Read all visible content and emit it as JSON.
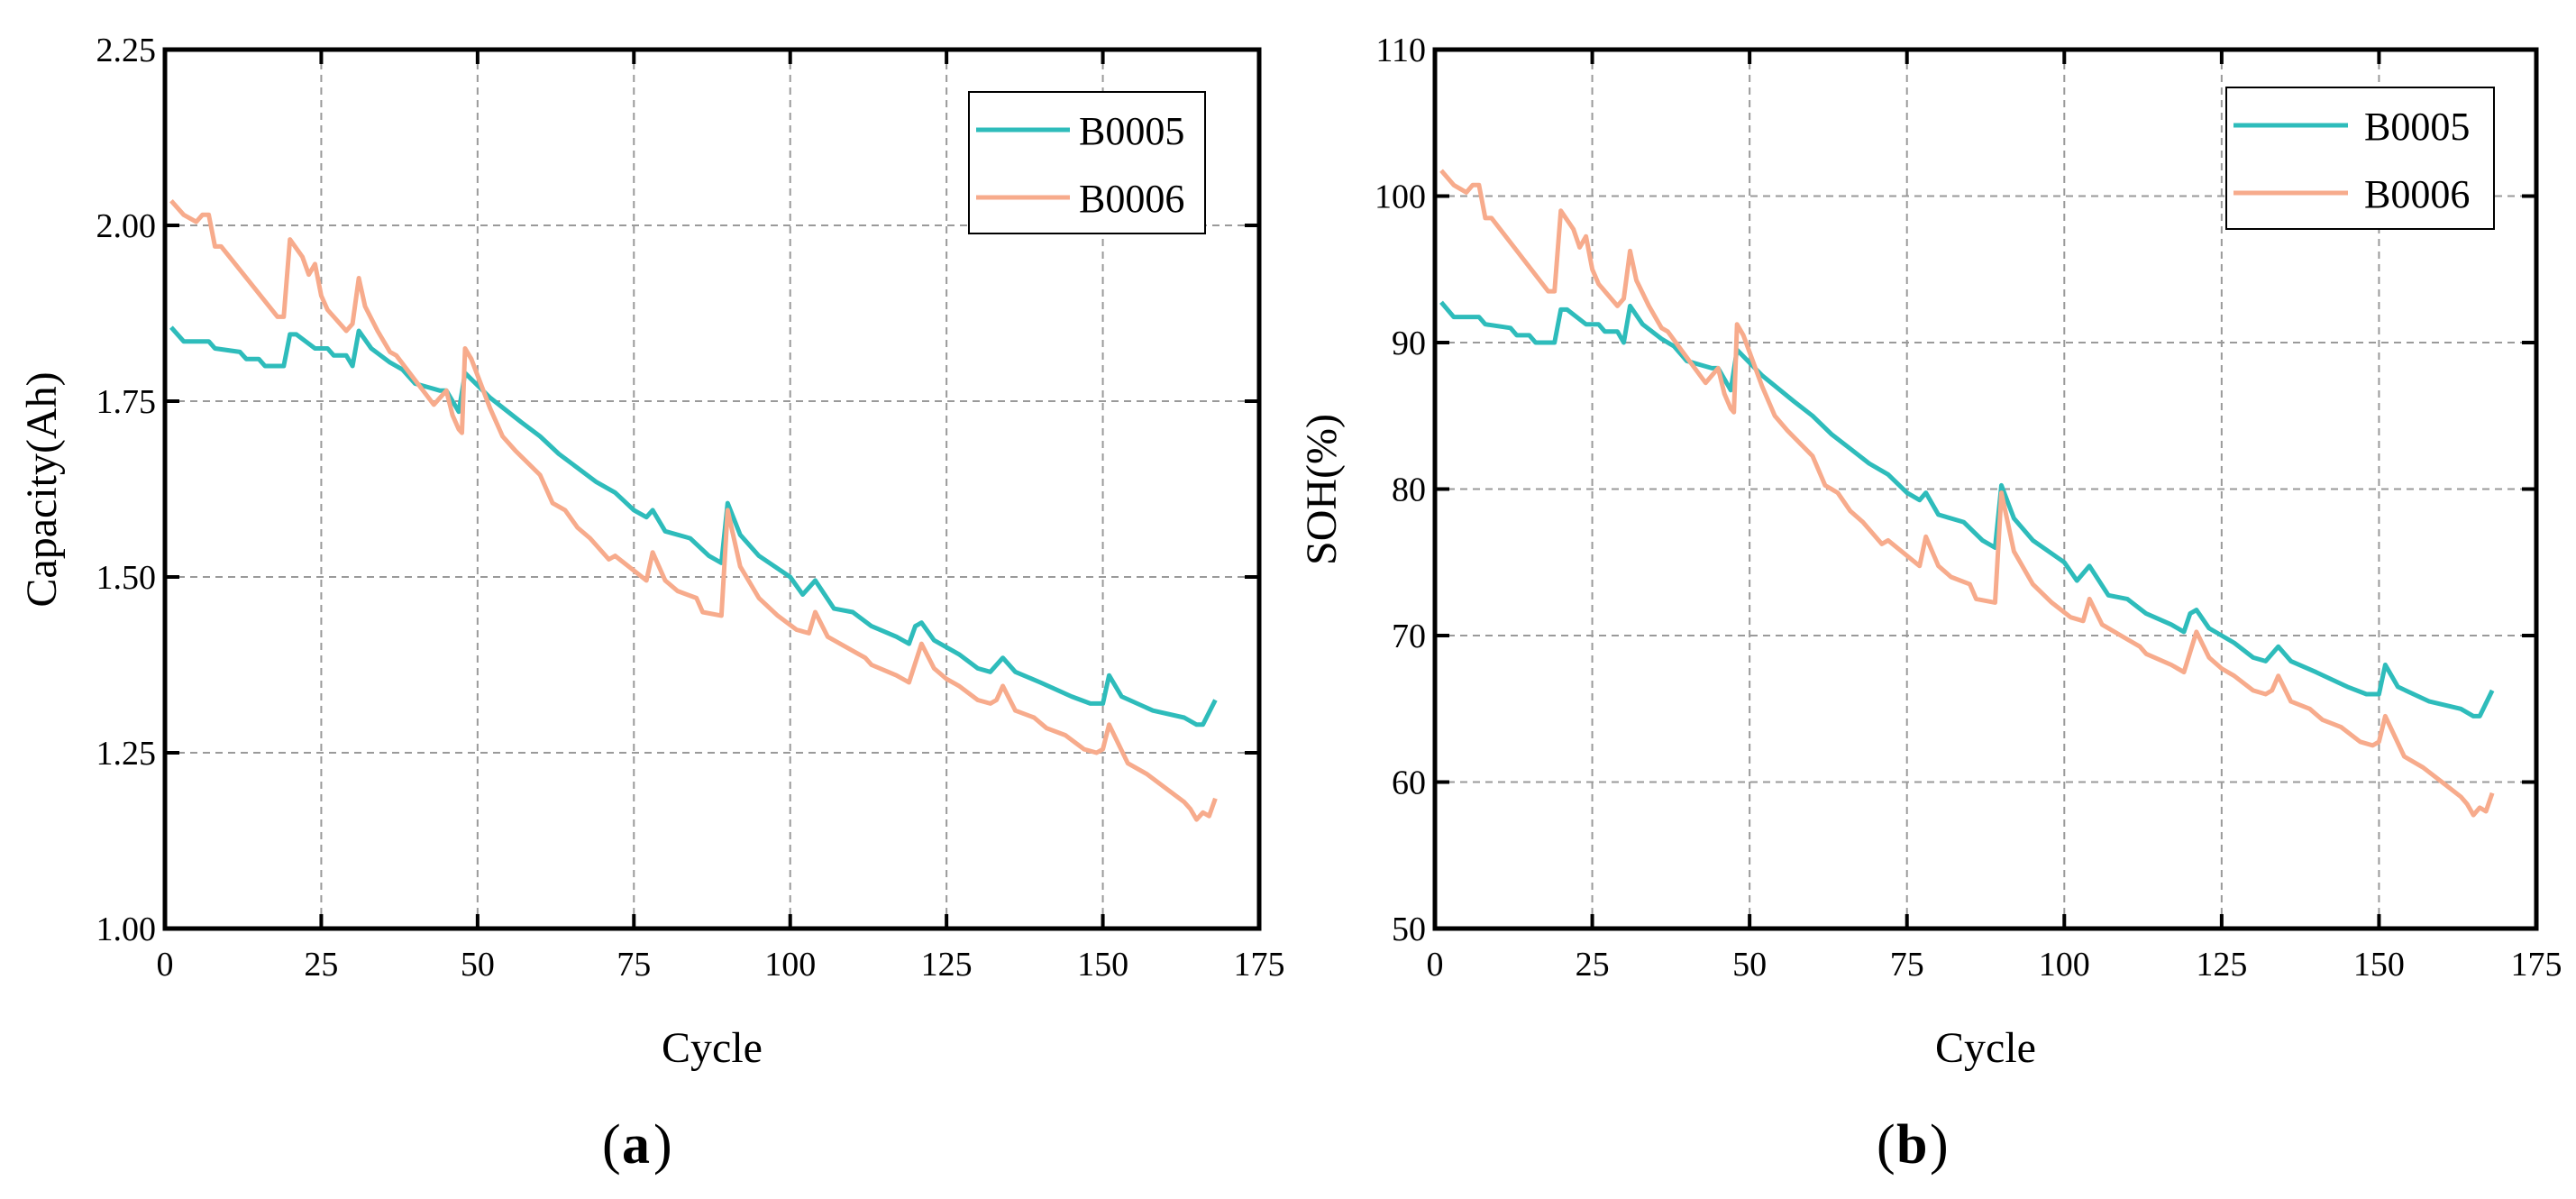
{
  "chart_data": [
    {
      "type": "line",
      "panel_label": "a",
      "xlabel": "Cycle",
      "ylabel": "Capacity(Ah)",
      "xlim": [
        0,
        175
      ],
      "ylim": [
        1.0,
        2.25
      ],
      "xticks": [
        "0",
        "25",
        "50",
        "75",
        "100",
        "125",
        "150",
        "175"
      ],
      "xtick_values": [
        0,
        25,
        50,
        75,
        100,
        125,
        150,
        175
      ],
      "yticks": [
        "1.00",
        "1.25",
        "1.50",
        "1.75",
        "2.00",
        "2.25"
      ],
      "ytick_values": [
        1.0,
        1.25,
        1.5,
        1.75,
        2.0,
        2.25
      ],
      "grid": true,
      "legend_position": "top-right",
      "series": [
        {
          "name": "B0005",
          "color": "#2ebcbb",
          "x": [
            1,
            3,
            7,
            8,
            12,
            13,
            15,
            16,
            19,
            20,
            21,
            24,
            26,
            27,
            29,
            30,
            31,
            33,
            36,
            38,
            40,
            42,
            44,
            45,
            47,
            48,
            52,
            57,
            60,
            63,
            66,
            69,
            72,
            75,
            77,
            78,
            80,
            84,
            87,
            89,
            90,
            92,
            95,
            100,
            102,
            104,
            107,
            110,
            113,
            117,
            119,
            120,
            121,
            123,
            127,
            130,
            132,
            134,
            136,
            140,
            145,
            148,
            150,
            151,
            153,
            158,
            163,
            165,
            166,
            168
          ],
          "y": [
            1.855,
            1.835,
            1.835,
            1.825,
            1.82,
            1.81,
            1.81,
            1.8,
            1.8,
            1.845,
            1.845,
            1.825,
            1.825,
            1.815,
            1.815,
            1.8,
            1.85,
            1.825,
            1.805,
            1.795,
            1.775,
            1.77,
            1.765,
            1.765,
            1.735,
            1.79,
            1.755,
            1.72,
            1.7,
            1.675,
            1.655,
            1.635,
            1.62,
            1.595,
            1.585,
            1.595,
            1.565,
            1.555,
            1.53,
            1.52,
            1.605,
            1.56,
            1.53,
            1.5,
            1.475,
            1.495,
            1.455,
            1.45,
            1.43,
            1.415,
            1.405,
            1.43,
            1.435,
            1.41,
            1.39,
            1.37,
            1.365,
            1.385,
            1.365,
            1.35,
            1.33,
            1.32,
            1.32,
            1.36,
            1.33,
            1.31,
            1.3,
            1.29,
            1.29,
            1.325
          ]
        },
        {
          "name": "B0006",
          "color": "#f7ab8c",
          "x": [
            1,
            3,
            5,
            6,
            7,
            8,
            9,
            18,
            19,
            20,
            22,
            23,
            24,
            25,
            26,
            29,
            30,
            31,
            32,
            34,
            36,
            37,
            40,
            43,
            45,
            46,
            47,
            47.5,
            48,
            49,
            52,
            54,
            56,
            60,
            62,
            64,
            66,
            68,
            71,
            72,
            77,
            78,
            80,
            82,
            85,
            86,
            89,
            90,
            92,
            95,
            98,
            101,
            103,
            104,
            106,
            110,
            112,
            113,
            117,
            119,
            121,
            123,
            125,
            127,
            130,
            132,
            133,
            134,
            136,
            139,
            141,
            144,
            147,
            149,
            150,
            151,
            154,
            157,
            160,
            163,
            164,
            165,
            166,
            167,
            168
          ],
          "y": [
            2.035,
            2.015,
            2.005,
            2.015,
            2.015,
            1.97,
            1.97,
            1.87,
            1.87,
            1.98,
            1.955,
            1.93,
            1.945,
            1.9,
            1.88,
            1.85,
            1.86,
            1.925,
            1.885,
            1.85,
            1.82,
            1.815,
            1.78,
            1.745,
            1.765,
            1.73,
            1.71,
            1.705,
            1.825,
            1.81,
            1.74,
            1.7,
            1.68,
            1.645,
            1.605,
            1.595,
            1.57,
            1.555,
            1.525,
            1.53,
            1.495,
            1.535,
            1.495,
            1.48,
            1.47,
            1.45,
            1.445,
            1.595,
            1.515,
            1.47,
            1.445,
            1.425,
            1.42,
            1.45,
            1.415,
            1.395,
            1.385,
            1.375,
            1.36,
            1.35,
            1.405,
            1.37,
            1.355,
            1.345,
            1.325,
            1.32,
            1.325,
            1.345,
            1.31,
            1.3,
            1.285,
            1.275,
            1.255,
            1.25,
            1.255,
            1.29,
            1.235,
            1.22,
            1.2,
            1.18,
            1.17,
            1.155,
            1.165,
            1.16,
            1.185
          ]
        }
      ]
    },
    {
      "type": "line",
      "panel_label": "b",
      "xlabel": "Cycle",
      "ylabel": "SOH(%)",
      "xlim": [
        0,
        175
      ],
      "ylim": [
        50,
        110
      ],
      "xticks": [
        "0",
        "25",
        "50",
        "75",
        "100",
        "125",
        "150",
        "175"
      ],
      "xtick_values": [
        0,
        25,
        50,
        75,
        100,
        125,
        150,
        175
      ],
      "yticks": [
        "50",
        "60",
        "70",
        "80",
        "90",
        "100",
        "110"
      ],
      "ytick_values": [
        50,
        60,
        70,
        80,
        90,
        100,
        110
      ],
      "grid": true,
      "legend_position": "top-right",
      "series": [
        {
          "name": "B0005",
          "color": "#2ebcbb",
          "x": [
            1,
            3,
            7,
            8,
            12,
            13,
            15,
            16,
            19,
            20,
            21,
            24,
            26,
            27,
            29,
            30,
            31,
            33,
            36,
            38,
            40,
            42,
            44,
            45,
            47,
            48,
            52,
            57,
            60,
            63,
            66,
            69,
            72,
            75,
            77,
            78,
            80,
            84,
            87,
            89,
            90,
            92,
            95,
            100,
            102,
            104,
            107,
            110,
            113,
            117,
            119,
            120,
            121,
            123,
            127,
            130,
            132,
            134,
            136,
            140,
            145,
            148,
            150,
            151,
            153,
            158,
            163,
            165,
            166,
            168
          ],
          "y": [
            92.75,
            91.75,
            91.75,
            91.25,
            91.0,
            90.5,
            90.5,
            90.0,
            90.0,
            92.25,
            92.25,
            91.25,
            91.25,
            90.75,
            90.75,
            90.0,
            92.5,
            91.25,
            90.25,
            89.75,
            88.75,
            88.5,
            88.25,
            88.25,
            86.75,
            89.5,
            87.75,
            86.0,
            85.0,
            83.75,
            82.75,
            81.75,
            81.0,
            79.75,
            79.25,
            79.75,
            78.25,
            77.75,
            76.5,
            76.0,
            80.25,
            78.0,
            76.5,
            75.0,
            73.75,
            74.75,
            72.75,
            72.5,
            71.5,
            70.75,
            70.25,
            71.5,
            71.75,
            70.5,
            69.5,
            68.5,
            68.25,
            69.25,
            68.25,
            67.5,
            66.5,
            66.0,
            66.0,
            68.0,
            66.5,
            65.5,
            65.0,
            64.5,
            64.5,
            66.25
          ]
        },
        {
          "name": "B0006",
          "color": "#f7ab8c",
          "x": [
            1,
            3,
            5,
            6,
            7,
            8,
            9,
            18,
            19,
            20,
            22,
            23,
            24,
            25,
            26,
            29,
            30,
            31,
            32,
            34,
            36,
            37,
            40,
            43,
            45,
            46,
            47,
            47.5,
            48,
            49,
            52,
            54,
            56,
            60,
            62,
            64,
            66,
            68,
            71,
            72,
            77,
            78,
            80,
            82,
            85,
            86,
            89,
            90,
            92,
            95,
            98,
            101,
            103,
            104,
            106,
            110,
            112,
            113,
            117,
            119,
            121,
            123,
            125,
            127,
            130,
            132,
            133,
            134,
            136,
            139,
            141,
            144,
            147,
            149,
            150,
            151,
            154,
            157,
            160,
            163,
            164,
            165,
            166,
            167,
            168
          ],
          "y": [
            101.75,
            100.75,
            100.25,
            100.75,
            100.75,
            98.5,
            98.5,
            93.5,
            93.5,
            99.0,
            97.75,
            96.5,
            97.25,
            95.0,
            94.0,
            92.5,
            93.0,
            96.25,
            94.25,
            92.5,
            91.0,
            90.75,
            89.0,
            87.25,
            88.25,
            86.5,
            85.5,
            85.25,
            91.25,
            90.5,
            87.0,
            85.0,
            84.0,
            82.25,
            80.25,
            79.75,
            78.5,
            77.75,
            76.25,
            76.5,
            74.75,
            76.75,
            74.75,
            74.0,
            73.5,
            72.5,
            72.25,
            79.75,
            75.75,
            73.5,
            72.25,
            71.25,
            71.0,
            72.5,
            70.75,
            69.75,
            69.25,
            68.75,
            68.0,
            67.5,
            70.25,
            68.5,
            67.75,
            67.25,
            66.25,
            66.0,
            66.25,
            67.25,
            65.5,
            65.0,
            64.25,
            63.75,
            62.75,
            62.5,
            62.75,
            64.5,
            61.75,
            61.0,
            60.0,
            59.0,
            58.5,
            57.75,
            58.25,
            58.0,
            59.25
          ]
        }
      ]
    }
  ]
}
